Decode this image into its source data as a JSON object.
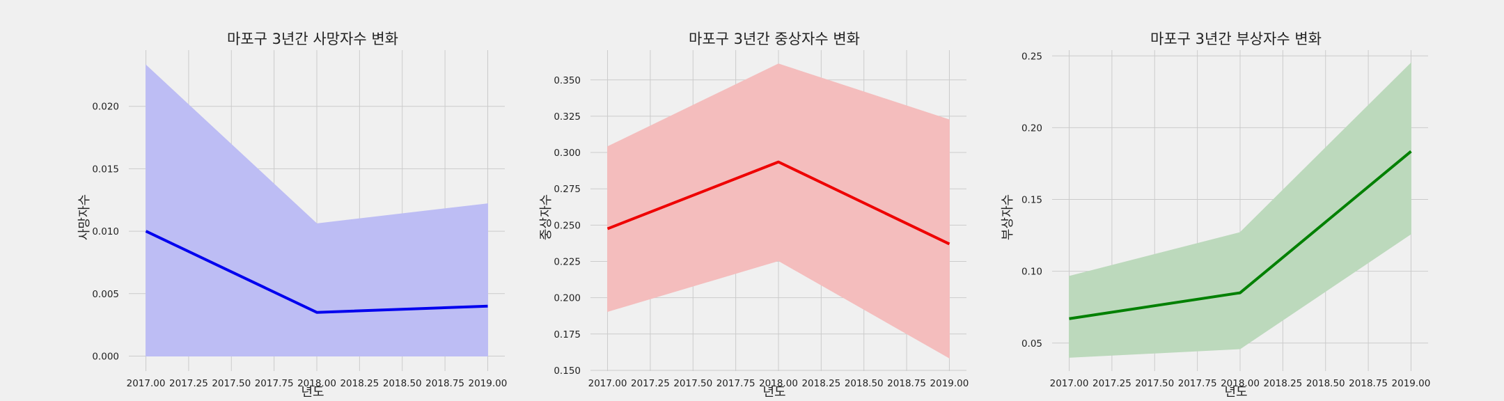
{
  "figure": {
    "background": "#f0f0f0"
  },
  "chart_data": [
    {
      "type": "line",
      "title": "마포구 3년간 사망자수 변화",
      "xlabel": "년도",
      "ylabel": "사망자수",
      "x": [
        2017,
        2018,
        2019
      ],
      "series": [
        {
          "values": [
            0.01,
            0.0035,
            0.004
          ],
          "ci_lower": [
            0.0,
            0.0,
            0.0
          ],
          "ci_upper": [
            0.0233,
            0.0106,
            0.0122
          ]
        }
      ],
      "xticks": [
        2017.0,
        2017.25,
        2017.5,
        2017.75,
        2018.0,
        2018.25,
        2018.5,
        2018.75,
        2019.0
      ],
      "xtick_labels": [
        "2017.00",
        "2017.25",
        "2017.50",
        "2017.75",
        "2018.00",
        "2018.25",
        "2018.50",
        "2018.75",
        "2019.00"
      ],
      "yticks": [
        0.0,
        0.005,
        0.01,
        0.015,
        0.02
      ],
      "ytick_labels": [
        "0.000",
        "0.005",
        "0.010",
        "0.015",
        "0.020"
      ],
      "xlim": [
        2016.9,
        2019.1
      ],
      "ylim": [
        -0.0012,
        0.0245
      ],
      "grid": true,
      "line_color": "#0000ee",
      "band_color": "#bdbdf4"
    },
    {
      "type": "line",
      "title": "마포구 3년간 중상자수 변화",
      "xlabel": "년도",
      "ylabel": "중상자수",
      "x": [
        2017,
        2018,
        2019
      ],
      "series": [
        {
          "values": [
            0.2475,
            0.2935,
            0.237
          ],
          "ci_lower": [
            0.1905,
            0.2255,
            0.1585
          ],
          "ci_upper": [
            0.304,
            0.361,
            0.3225
          ]
        }
      ],
      "xticks": [
        2017.0,
        2017.25,
        2017.5,
        2017.75,
        2018.0,
        2018.25,
        2018.5,
        2018.75,
        2019.0
      ],
      "xtick_labels": [
        "2017.00",
        "2017.25",
        "2017.50",
        "2017.75",
        "2018.00",
        "2018.25",
        "2018.50",
        "2018.75",
        "2019.00"
      ],
      "yticks": [
        0.15,
        0.175,
        0.2,
        0.225,
        0.25,
        0.275,
        0.3,
        0.325,
        0.35
      ],
      "ytick_labels": [
        "0.150",
        "0.175",
        "0.200",
        "0.225",
        "0.250",
        "0.275",
        "0.300",
        "0.325",
        "0.350"
      ],
      "xlim": [
        2016.9,
        2019.1
      ],
      "ylim": [
        0.1495,
        0.3705
      ],
      "grid": true,
      "line_color": "#ee0000",
      "band_color": "#f4bdbd"
    },
    {
      "type": "line",
      "title": "마포구 3년간 부상자수 변화",
      "xlabel": "년도",
      "ylabel": "부상자수",
      "x": [
        2017,
        2018,
        2019
      ],
      "series": [
        {
          "values": [
            0.067,
            0.085,
            0.1835
          ],
          "ci_lower": [
            0.04,
            0.046,
            0.126
          ],
          "ci_upper": [
            0.0965,
            0.127,
            0.245
          ]
        }
      ],
      "xticks": [
        2017.0,
        2017.25,
        2017.5,
        2017.75,
        2018.0,
        2018.25,
        2018.5,
        2018.75,
        2019.0
      ],
      "xtick_labels": [
        "2017.00",
        "2017.25",
        "2017.50",
        "2017.75",
        "2018.00",
        "2018.25",
        "2018.50",
        "2018.75",
        "2019.00"
      ],
      "yticks": [
        0.05,
        0.1,
        0.15,
        0.2,
        0.25
      ],
      "ytick_labels": [
        "0.05",
        "0.10",
        "0.15",
        "0.20",
        "0.25"
      ],
      "xlim": [
        2016.9,
        2019.1
      ],
      "ylim": [
        0.0305,
        0.254
      ],
      "grid": true,
      "line_color": "#008000",
      "band_color": "#bcd9bc"
    }
  ]
}
